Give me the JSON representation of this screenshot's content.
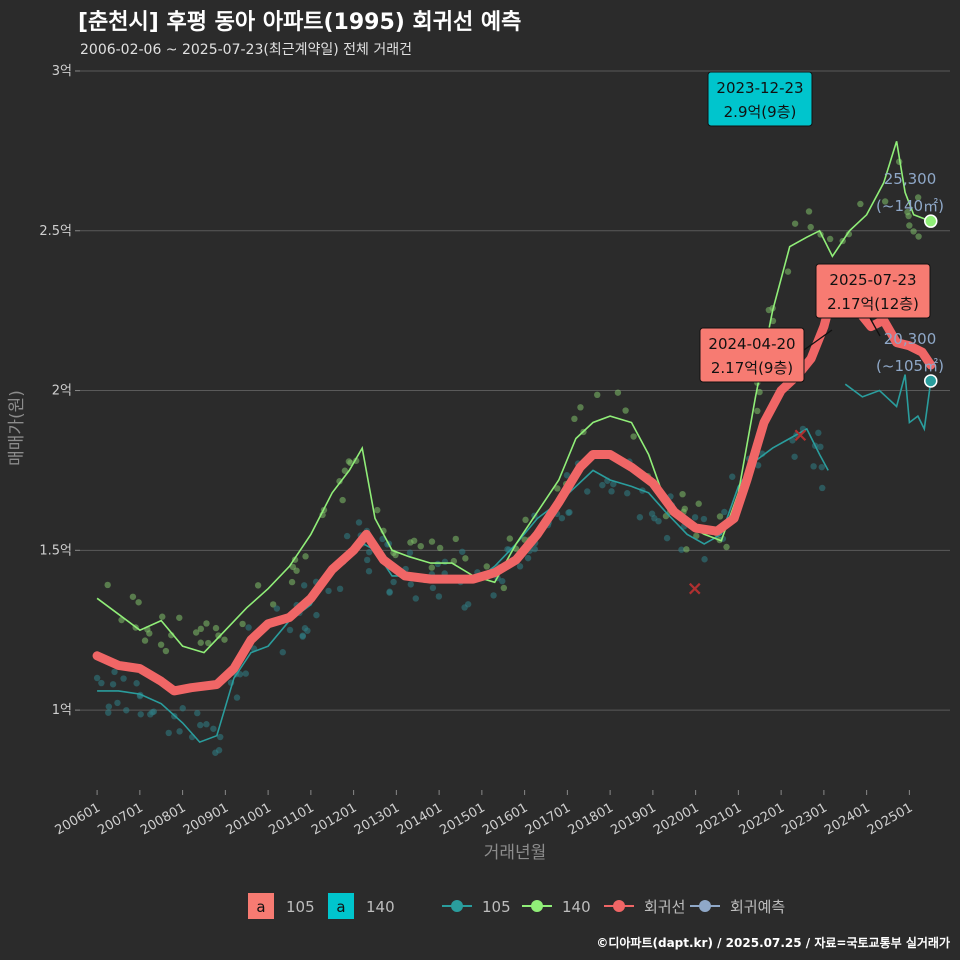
{
  "title": "[춘천시] 후평 동아 아파트(1995) 회귀선 예측",
  "subtitle": "2006-02-06 ~ 2025-07-23(최근계약일) 전체 거래건",
  "caption": "©디아파트(dapt.kr) / 2025.07.25 / 자료=국토교통부 실거래가",
  "colors": {
    "background": "#2b2b2b",
    "grid": "#5a5a5a",
    "s105": "#2a9d9d",
    "s140": "#90ee78",
    "regression": "#f06666",
    "forecast": "#8fa8c8",
    "callout_teal": "#00c5cd",
    "callout_red": "#f77b72"
  },
  "chart_data": {
    "type": "line",
    "xlabel": "거래년월",
    "ylabel": "매매가(원)",
    "x_ticks": [
      "200601",
      "200701",
      "200801",
      "200901",
      "201001",
      "201101",
      "201201",
      "201301",
      "201401",
      "201501",
      "201601",
      "201701",
      "201801",
      "201901",
      "202001",
      "202101",
      "202201",
      "202301",
      "202401",
      "202501"
    ],
    "y_ticks": [
      {
        "value": 1.0,
        "label": "1억"
      },
      {
        "value": 1.5,
        "label": "1.5억"
      },
      {
        "value": 2.0,
        "label": "2억"
      },
      {
        "value": 2.5,
        "label": "2.5억"
      },
      {
        "value": 3.0,
        "label": "3억"
      }
    ],
    "xlim": [
      2005.6,
      2025.95
    ],
    "ylim": [
      0.75,
      3.05
    ],
    "series": [
      {
        "name": "105",
        "points": [
          [
            2006.0,
            1.06
          ],
          [
            2006.5,
            1.06
          ],
          [
            2007.0,
            1.05
          ],
          [
            2007.5,
            1.02
          ],
          [
            2008.0,
            0.96
          ],
          [
            2008.4,
            0.9
          ],
          [
            2008.8,
            0.92
          ],
          [
            2009.2,
            1.1
          ],
          [
            2009.6,
            1.18
          ],
          [
            2010.0,
            1.2
          ],
          [
            2010.5,
            1.28
          ],
          [
            2011.0,
            1.33
          ],
          [
            2011.4,
            1.42
          ],
          [
            2011.8,
            1.46
          ],
          [
            2012.1,
            1.53
          ],
          [
            2012.5,
            1.5
          ],
          [
            2012.9,
            1.42
          ],
          [
            2013.3,
            1.42
          ],
          [
            2013.8,
            1.4
          ],
          [
            2014.3,
            1.42
          ],
          [
            2014.8,
            1.4
          ],
          [
            2015.3,
            1.45
          ],
          [
            2015.8,
            1.52
          ],
          [
            2016.3,
            1.6
          ],
          [
            2016.8,
            1.65
          ],
          [
            2017.2,
            1.7
          ],
          [
            2017.6,
            1.75
          ],
          [
            2018.0,
            1.72
          ],
          [
            2018.5,
            1.7
          ],
          [
            2018.9,
            1.68
          ],
          [
            2019.3,
            1.62
          ],
          [
            2019.8,
            1.55
          ],
          [
            2020.2,
            1.52
          ],
          [
            2020.6,
            1.55
          ],
          [
            2021.0,
            1.7
          ],
          [
            2021.4,
            1.78
          ],
          [
            2021.8,
            1.82
          ],
          [
            2022.2,
            1.85
          ],
          [
            2022.6,
            1.88
          ],
          [
            2022.9,
            1.8
          ],
          [
            2023.1,
            1.75
          ]
        ]
      },
      {
        "name": "105",
        "points": [
          [
            2023.5,
            2.02
          ],
          [
            2023.9,
            1.98
          ],
          [
            2024.3,
            2.0
          ],
          [
            2024.7,
            1.95
          ],
          [
            2024.9,
            2.05
          ],
          [
            2025.0,
            1.9
          ],
          [
            2025.2,
            1.92
          ],
          [
            2025.35,
            1.88
          ],
          [
            2025.5,
            2.03
          ]
        ]
      },
      {
        "name": "140",
        "points": [
          [
            2006.0,
            1.35
          ],
          [
            2006.5,
            1.3
          ],
          [
            2007.0,
            1.25
          ],
          [
            2007.5,
            1.28
          ],
          [
            2008.0,
            1.2
          ],
          [
            2008.5,
            1.18
          ],
          [
            2009.0,
            1.25
          ],
          [
            2009.5,
            1.32
          ],
          [
            2010.0,
            1.38
          ],
          [
            2010.5,
            1.45
          ],
          [
            2011.0,
            1.55
          ],
          [
            2011.5,
            1.68
          ],
          [
            2011.9,
            1.75
          ],
          [
            2012.2,
            1.82
          ],
          [
            2012.5,
            1.6
          ],
          [
            2012.9,
            1.5
          ],
          [
            2013.3,
            1.48
          ],
          [
            2013.8,
            1.46
          ],
          [
            2014.3,
            1.46
          ],
          [
            2014.8,
            1.42
          ],
          [
            2015.3,
            1.4
          ],
          [
            2015.8,
            1.52
          ],
          [
            2016.3,
            1.62
          ],
          [
            2016.8,
            1.72
          ],
          [
            2017.2,
            1.85
          ],
          [
            2017.6,
            1.9
          ],
          [
            2018.0,
            1.92
          ],
          [
            2018.5,
            1.9
          ],
          [
            2018.9,
            1.8
          ],
          [
            2019.3,
            1.65
          ],
          [
            2019.8,
            1.58
          ],
          [
            2020.2,
            1.55
          ],
          [
            2020.6,
            1.53
          ],
          [
            2021.0,
            1.68
          ],
          [
            2021.4,
            1.98
          ],
          [
            2021.8,
            2.25
          ],
          [
            2022.2,
            2.45
          ],
          [
            2022.6,
            2.48
          ],
          [
            2022.9,
            2.5
          ],
          [
            2023.2,
            2.42
          ],
          [
            2023.6,
            2.5
          ],
          [
            2024.0,
            2.55
          ],
          [
            2024.4,
            2.65
          ],
          [
            2024.7,
            2.78
          ],
          [
            2024.9,
            2.62
          ],
          [
            2025.1,
            2.55
          ],
          [
            2025.5,
            2.53
          ]
        ]
      },
      {
        "name": "회귀선",
        "points": [
          [
            2006.0,
            1.17
          ],
          [
            2006.5,
            1.14
          ],
          [
            2007.0,
            1.13
          ],
          [
            2007.5,
            1.09
          ],
          [
            2007.8,
            1.06
          ],
          [
            2008.2,
            1.07
          ],
          [
            2008.8,
            1.08
          ],
          [
            2009.2,
            1.13
          ],
          [
            2009.6,
            1.22
          ],
          [
            2010.0,
            1.27
          ],
          [
            2010.5,
            1.29
          ],
          [
            2011.0,
            1.35
          ],
          [
            2011.5,
            1.44
          ],
          [
            2012.0,
            1.5
          ],
          [
            2012.3,
            1.55
          ],
          [
            2012.7,
            1.47
          ],
          [
            2013.2,
            1.42
          ],
          [
            2013.8,
            1.41
          ],
          [
            2014.3,
            1.41
          ],
          [
            2014.8,
            1.41
          ],
          [
            2015.3,
            1.43
          ],
          [
            2015.8,
            1.47
          ],
          [
            2016.3,
            1.55
          ],
          [
            2016.8,
            1.65
          ],
          [
            2017.3,
            1.76
          ],
          [
            2017.6,
            1.8
          ],
          [
            2018.0,
            1.8
          ],
          [
            2018.5,
            1.76
          ],
          [
            2019.0,
            1.71
          ],
          [
            2019.5,
            1.62
          ],
          [
            2020.0,
            1.57
          ],
          [
            2020.5,
            1.56
          ],
          [
            2020.9,
            1.6
          ],
          [
            2021.2,
            1.72
          ],
          [
            2021.6,
            1.9
          ],
          [
            2022.0,
            2.0
          ],
          [
            2022.4,
            2.05
          ],
          [
            2022.7,
            2.1
          ],
          [
            2023.0,
            2.2
          ],
          [
            2023.2,
            2.3
          ],
          [
            2023.5,
            2.28
          ],
          [
            2023.8,
            2.25
          ],
          [
            2024.1,
            2.2
          ],
          [
            2024.4,
            2.22
          ],
          [
            2024.7,
            2.15
          ],
          [
            2025.0,
            2.14
          ],
          [
            2025.3,
            2.12
          ],
          [
            2025.5,
            2.08
          ]
        ]
      }
    ],
    "cancelled": [
      [
        2019.98,
        1.38
      ],
      [
        2022.45,
        1.86
      ]
    ],
    "scatter_seed": 7,
    "callouts": [
      {
        "date": "2023-12-23",
        "text": "2.9억(9층)",
        "style": "teal",
        "anchor": [
          2024.0,
          2.9
        ]
      },
      {
        "date": "2025-07-23",
        "text": "2.17억(12층)",
        "style": "red",
        "anchor": [
          2025.15,
          2.17
        ]
      },
      {
        "date": "2024-04-20",
        "text": "2.17억(9층)",
        "style": "red",
        "anchor": [
          2024.3,
          2.17
        ]
      }
    ],
    "end_labels": [
      {
        "value": "25,300",
        "unit": "(~140㎡)",
        "y": 2.53
      },
      {
        "value": "20,300",
        "unit": "(~105㎡)",
        "y": 2.03
      }
    ]
  },
  "legend": {
    "area_items": [
      {
        "key": "a",
        "label": "105"
      },
      {
        "key": "a",
        "label": "140"
      }
    ],
    "line_items": [
      {
        "label": "105"
      },
      {
        "label": "140"
      },
      {
        "label": "회귀선"
      },
      {
        "label": "회귀예측"
      }
    ]
  }
}
